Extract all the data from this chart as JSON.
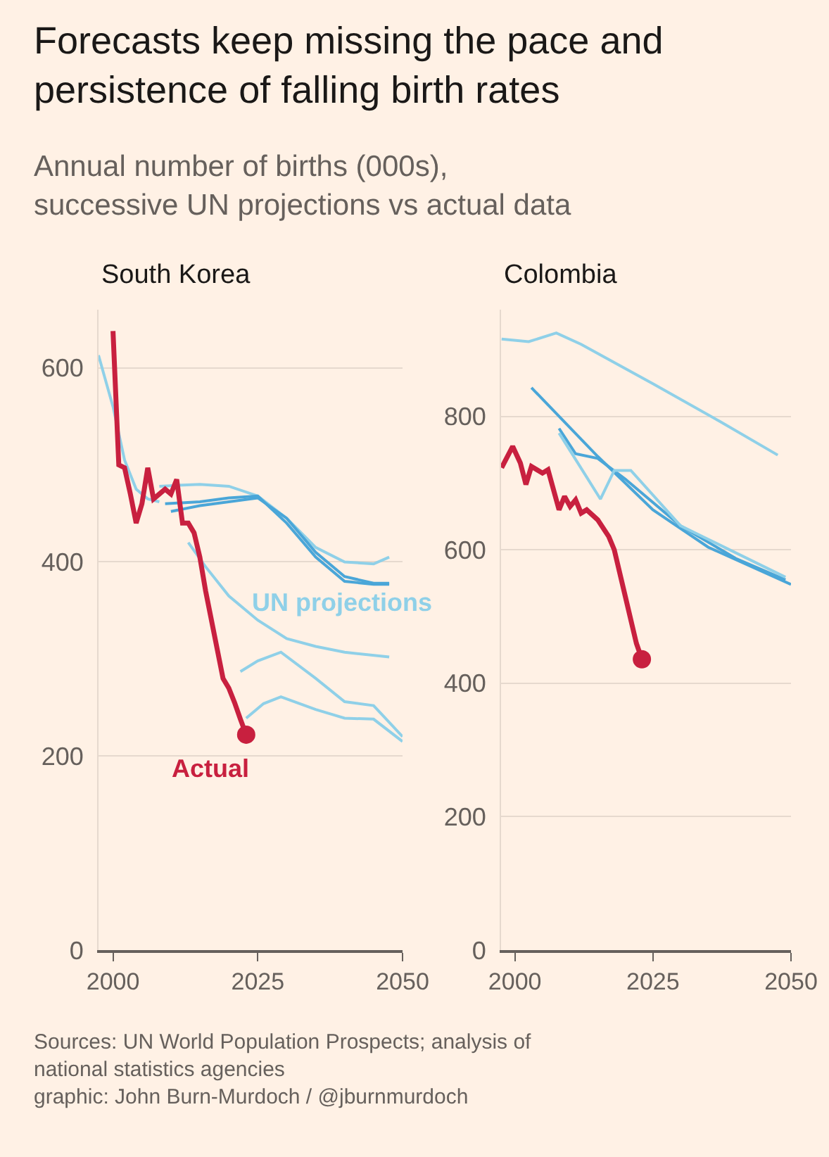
{
  "chart_data": [
    {
      "type": "other",
      "title": "Forecasts keep missing the pace and persistence of falling birth rates",
      "subtitle": "Annual number of births (000s), successive UN projections vs actual data",
      "annotations": [
        "Sources: UN World Population Prospects; analysis of national statistics agencies",
        "graphic: John Burn-Murdoch / @jburnmurdoch"
      ]
    },
    {
      "type": "line",
      "title": "South Korea",
      "xlim": [
        1997.5,
        2050
      ],
      "xticks": [
        2000,
        2025,
        2050
      ],
      "ylim": [
        0,
        660
      ],
      "yticks": [
        0,
        200,
        400,
        600
      ],
      "grid": "y",
      "series": [
        {
          "color": "#8fd0e8",
          "x": [
            1997.5,
            2000,
            2002,
            2004,
            2006,
            2008
          ],
          "values": [
            613,
            560,
            505,
            475,
            465,
            462
          ]
        },
        {
          "color": "#8fd0e8",
          "x": [
            2008,
            2015,
            2020,
            2025,
            2030,
            2035,
            2040,
            2045,
            2047.7
          ],
          "values": [
            478,
            480,
            478,
            468,
            445,
            415,
            400,
            398,
            405
          ]
        },
        {
          "color": "#4aa6d8",
          "x": [
            2009,
            2015,
            2020,
            2025,
            2030,
            2035,
            2040,
            2045,
            2047.7
          ],
          "values": [
            460,
            462,
            466,
            468,
            440,
            405,
            380,
            377,
            377
          ]
        },
        {
          "color": "#4aa6d8",
          "x": [
            2010,
            2015,
            2020,
            2025,
            2030,
            2035,
            2040,
            2045,
            2047.7
          ],
          "values": [
            452,
            458,
            462,
            466,
            445,
            410,
            385,
            378,
            378
          ]
        },
        {
          "name": "UN projections",
          "color": "#8fd0e8",
          "x": [
            2013,
            2016,
            2020,
            2025,
            2030,
            2035,
            2040,
            2047.7
          ],
          "values": [
            420,
            395,
            365,
            340,
            321,
            313,
            307,
            302
          ]
        },
        {
          "color": "#8fd0e8",
          "x": [
            2022,
            2025,
            2029,
            2035,
            2040,
            2045,
            2050
          ],
          "values": [
            287,
            298,
            307,
            280,
            256,
            252,
            220
          ]
        },
        {
          "color": "#8fd0e8",
          "x": [
            2023,
            2026,
            2029,
            2035,
            2040,
            2045,
            2050
          ],
          "values": [
            239,
            254,
            261,
            248,
            239,
            238,
            215
          ]
        },
        {
          "name": "Actual",
          "color": "#c8203f",
          "x": [
            2000,
            2001,
            2002,
            2003,
            2004,
            2005,
            2006,
            2007,
            2008,
            2009,
            2010,
            2011,
            2012,
            2013,
            2014,
            2015,
            2016,
            2017,
            2018,
            2019,
            2020,
            2021,
            2022,
            2023
          ],
          "values": [
            638,
            500,
            497,
            470,
            440,
            460,
            497,
            465,
            470,
            475,
            470,
            485,
            440,
            440,
            430,
            405,
            370,
            340,
            310,
            280,
            270,
            255,
            238,
            222
          ]
        },
        {
          "type": "scatter",
          "marker": "circle",
          "color": "#c8203f",
          "x": [
            2023
          ],
          "values": [
            222
          ]
        }
      ]
    },
    {
      "type": "line",
      "title": "Colombia",
      "xlim": [
        1997.5,
        2050
      ],
      "xticks": [
        2000,
        2025,
        2050
      ],
      "ylim": [
        0,
        960
      ],
      "yticks": [
        0,
        200,
        400,
        600,
        800
      ],
      "grid": "y",
      "series": [
        {
          "color": "#8fd0e8",
          "x": [
            1997.6,
            2002.5,
            2007.5,
            2012,
            2025,
            2037,
            2047.6
          ],
          "values": [
            916,
            912,
            925,
            908,
            849,
            793,
            742
          ]
        },
        {
          "color": "#4aa6d8",
          "x": [
            2003,
            2015,
            2025,
            2035,
            2050
          ],
          "values": [
            843,
            740,
            660,
            604,
            548
          ]
        },
        {
          "color": "#4aa6d8",
          "x": [
            2008,
            2011,
            2015,
            2020,
            2030,
            2040,
            2049
          ],
          "values": [
            782,
            744,
            737,
            706,
            636,
            587,
            555
          ]
        },
        {
          "color": "#8fd0e8",
          "x": [
            2008,
            2013,
            2015.5,
            2018,
            2021,
            2030,
            2049
          ],
          "values": [
            775,
            709,
            676,
            719,
            719,
            636,
            559
          ]
        },
        {
          "color": "#c8203f",
          "x": [
            1997.6,
            1999.6,
            2001,
            2002,
            2003,
            2005,
            2006,
            2008,
            2009,
            2010,
            2011,
            2012,
            2013,
            2015,
            2017,
            2018,
            2020,
            2022,
            2023
          ],
          "values": [
            723,
            755,
            730,
            698,
            725,
            715,
            720,
            660,
            680,
            665,
            675,
            655,
            660,
            645,
            620,
            600,
            530,
            460,
            436
          ]
        },
        {
          "type": "scatter",
          "marker": "circle",
          "color": "#c8203f",
          "x": [
            2023
          ],
          "values": [
            436
          ]
        }
      ]
    }
  ]
}
